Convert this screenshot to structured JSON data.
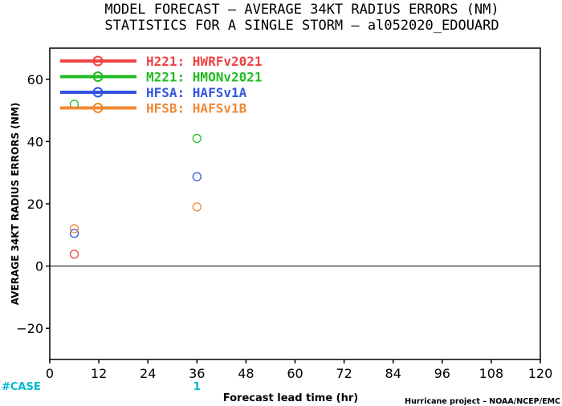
{
  "chart_data": {
    "type": "scatter",
    "title": "MODEL FORECAST – AVERAGE 34KT RADIUS ERRORS (NM)",
    "subtitle": "STATISTICS FOR A SINGLE STORM – al052020_EDOUARD",
    "xlabel": "Forecast lead time (hr)",
    "ylabel": "AVERAGE 34KT RADIUS ERRORS (NM)",
    "xlim": [
      0,
      120
    ],
    "ylim": [
      -30,
      70
    ],
    "x_ticks": [
      0,
      12,
      24,
      36,
      48,
      60,
      72,
      84,
      96,
      108,
      120
    ],
    "y_ticks": [
      -20,
      0,
      20,
      40,
      60
    ],
    "grid": false,
    "legend_position": "top-left",
    "reference_line_y": 0,
    "series": [
      {
        "name": "H221: HWRFv2021",
        "color": "#ee4444",
        "x": [
          6,
          36
        ],
        "y": [
          3.8,
          null
        ]
      },
      {
        "name": "M221: HMONv2021",
        "color": "#22bb22",
        "x": [
          6,
          36
        ],
        "y": [
          52,
          41
        ]
      },
      {
        "name": "HFSA: HAFSv1A",
        "color": "#3355dd",
        "x": [
          6,
          36
        ],
        "y": [
          10.5,
          28.7
        ]
      },
      {
        "name": "HFSB: HAFSv1B",
        "color": "#ee8833",
        "x": [
          6,
          36
        ],
        "y": [
          12,
          19
        ]
      }
    ],
    "case_label": "#CASE",
    "case_counts": [
      {
        "x": 36,
        "label": "1"
      }
    ],
    "case_color": "#00bbcc",
    "credit": "Hurricane project – NOAA/NCEP/EMC"
  }
}
